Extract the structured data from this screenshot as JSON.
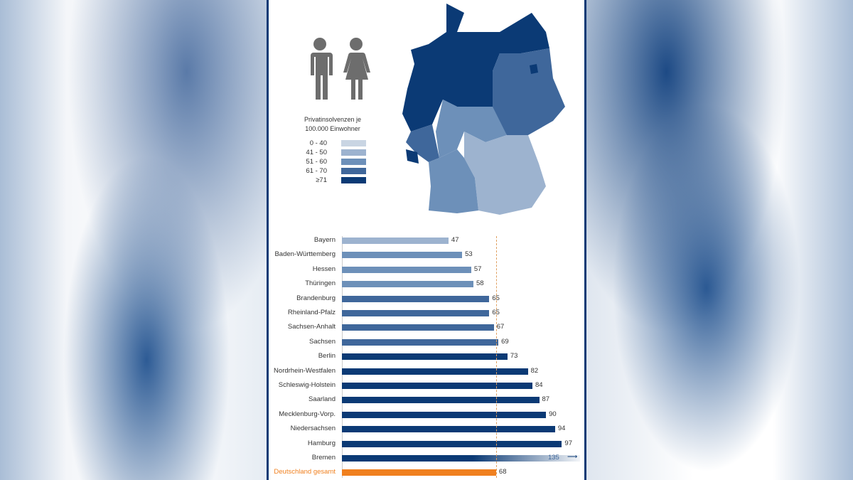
{
  "legend": {
    "title_line1": "Privatinsolvenzen je",
    "title_line2": "100.000 Einwohner",
    "items": [
      {
        "label": "0 - 40",
        "color": "#c9d5e3"
      },
      {
        "label": "41 - 50",
        "color": "#9db3cf"
      },
      {
        "label": "51 - 60",
        "color": "#6d90b9"
      },
      {
        "label": "61 - 70",
        "color": "#3f679b"
      },
      {
        "label": "≥71",
        "color": "#0b3a75"
      }
    ]
  },
  "colors": {
    "national": "#f0801f",
    "reference_line": "#e0a060",
    "frame": "#0b3a75",
    "icon": "#6d6d6d"
  },
  "icons": [
    "man-icon",
    "woman-icon"
  ],
  "chart_data": {
    "type": "bar",
    "orientation": "horizontal",
    "categories": [
      "Bayern",
      "Baden-Württemberg",
      "Hessen",
      "Thüringen",
      "Brandenburg",
      "Rheinland-Pfalz",
      "Sachsen-Anhalt",
      "Sachsen",
      "Berlin",
      "Nordrhein-Westfalen",
      "Schleswig-Holstein",
      "Saarland",
      "Mecklenburg-Vorp.",
      "Niedersachsen",
      "Hamburg",
      "Bremen"
    ],
    "values": [
      47,
      53,
      57,
      58,
      65,
      65,
      67,
      69,
      73,
      82,
      84,
      87,
      90,
      94,
      97,
      135
    ],
    "value_labels": [
      "47",
      "53",
      "57",
      "58",
      "65",
      "65",
      "67",
      "69",
      "73",
      "82",
      "84",
      "87",
      "90",
      "94",
      "97",
      "135"
    ],
    "total": {
      "label": "Deutschland gesamt",
      "value": 68,
      "value_label": "68"
    },
    "reference_line": 68,
    "xlim": [
      0,
      105
    ]
  }
}
